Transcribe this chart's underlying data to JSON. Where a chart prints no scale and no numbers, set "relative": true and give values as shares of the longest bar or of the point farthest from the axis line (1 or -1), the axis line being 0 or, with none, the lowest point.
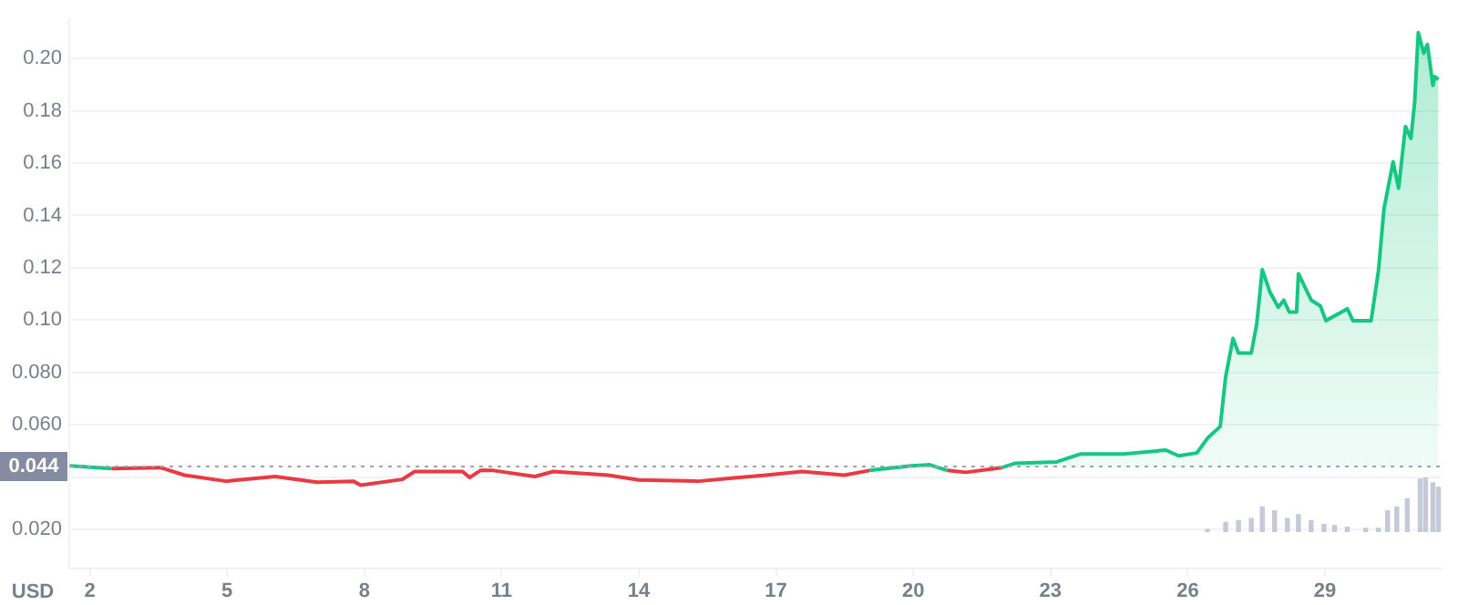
{
  "chart_data": [
    {
      "type": "line",
      "ylabel": "USD",
      "series": [
        {
          "type": "area",
          "color": "#16c784",
          "x": [
            1.56,
            2.48
          ],
          "values": [
            0.0443,
            0.0432
          ]
        },
        {
          "type": "area",
          "color": "#16c784",
          "x": [
            19.04,
            19.96,
            20.36,
            20.75
          ],
          "values": [
            0.0425,
            0.0443,
            0.0447,
            0.0425
          ]
        },
        {
          "type": "area",
          "color": "#16c784",
          "x": [
            21.94,
            22.22,
            23.14,
            23.65,
            24.6,
            25.52,
            25.8,
            26.2,
            26.43,
            26.71,
            26.83,
            26.99,
            27.11,
            27.39,
            27.51,
            27.63,
            27.79,
            27.98,
            28.1,
            28.22,
            28.38,
            28.42,
            28.7,
            28.9,
            29.02,
            29.49,
            29.61,
            30.01,
            30.17,
            30.29,
            30.49,
            30.61,
            30.76,
            30.88,
            30.96,
            31.04,
            31.16,
            31.24,
            31.36,
            31.4,
            31.48
          ],
          "values": [
            0.0436,
            0.0452,
            0.0458,
            0.0488,
            0.0488,
            0.0503,
            0.0481,
            0.0492,
            0.0548,
            0.0593,
            0.0784,
            0.093,
            0.0874,
            0.0874,
            0.0987,
            0.1193,
            0.111,
            0.1049,
            0.1076,
            0.1031,
            0.1031,
            0.1177,
            0.1076,
            0.1054,
            0.0998,
            0.1043,
            0.0998,
            0.0998,
            0.1189,
            0.1425,
            0.1605,
            0.1504,
            0.174,
            0.1695,
            0.183,
            0.2099,
            0.202,
            0.2054,
            0.1897,
            0.1931,
            0.192
          ]
        },
        {
          "type": "line",
          "color": "#ea3943",
          "x": [
            2.48,
            3.54,
            4.07,
            4.98,
            6.05,
            6.97,
            7.76,
            7.92,
            8.83,
            9.1,
            10.15,
            10.3,
            10.54,
            10.82,
            11.73,
            12.13,
            13.33,
            14.0,
            15.31,
            15.98,
            16.78,
            17.57,
            18.49,
            19.04
          ],
          "values": [
            0.0432,
            0.0436,
            0.0407,
            0.0384,
            0.0402,
            0.038,
            0.0384,
            0.0369,
            0.0391,
            0.0421,
            0.0421,
            0.0398,
            0.0425,
            0.0425,
            0.0402,
            0.0421,
            0.0407,
            0.0389,
            0.0384,
            0.0395,
            0.0407,
            0.0421,
            0.0407,
            0.0425
          ]
        },
        {
          "type": "line",
          "color": "#ea3943",
          "x": [
            20.75,
            21.15,
            21.94
          ],
          "values": [
            0.0425,
            0.0418,
            0.0436
          ]
        }
      ],
      "xlim": [
        1.55,
        31.55
      ],
      "xticks": [
        2,
        5,
        8,
        11,
        14,
        17,
        20,
        23,
        26,
        29
      ],
      "ylim": [
        0.005,
        0.215
      ],
      "yticks": [
        {
          "value": 0.02,
          "label": "0.020"
        },
        {
          "value": 0.04,
          "label": null
        },
        {
          "value": 0.06,
          "label": "0.060"
        },
        {
          "value": 0.08,
          "label": "0.080"
        },
        {
          "value": 0.1,
          "label": "0.10"
        },
        {
          "value": 0.12,
          "label": "0.12"
        },
        {
          "value": 0.14,
          "label": "0.14"
        },
        {
          "value": 0.16,
          "label": "0.16"
        },
        {
          "value": 0.18,
          "label": "0.18"
        },
        {
          "value": 0.2,
          "label": "0.20"
        }
      ],
      "ref_lines": [
        {
          "axis": "y",
          "value": 0.044,
          "label": "0.044",
          "color": "#a0a4ad",
          "line_style": "dotted"
        }
      ],
      "grid": "y"
    },
    {
      "type": "bar",
      "relative": true,
      "color": "#c5c9d8",
      "x": [
        26.43,
        26.83,
        27.11,
        27.39,
        27.63,
        27.9,
        28.18,
        28.42,
        28.7,
        28.98,
        29.21,
        29.49,
        29.89,
        30.17,
        30.37,
        30.57,
        30.8,
        31.08,
        31.2,
        31.36,
        31.48
      ],
      "values": [
        0.06,
        0.19,
        0.22,
        0.26,
        0.47,
        0.4,
        0.26,
        0.33,
        0.22,
        0.15,
        0.13,
        0.1,
        0.08,
        0.08,
        0.4,
        0.47,
        0.62,
        0.98,
        1,
        0.91,
        0.83
      ],
      "xlim": [
        1.55,
        31.55
      ]
    }
  ]
}
